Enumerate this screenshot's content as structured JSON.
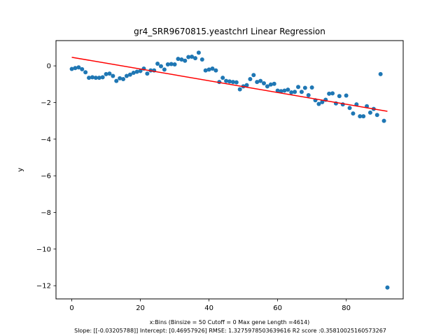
{
  "chart_data": {
    "type": "scatter",
    "title": "gr4_SRR9670815.yeastchrI Linear Regression",
    "xlabel": "x:Bins  (Binsize = 50 Cutoff = 0 Max gene Length =4614)",
    "ylabel": "y",
    "footer": "Slope: [[-0.03205788]] Intercept: [0.46957926] RMSE: 1.3275978503639616 R2 score :0.35810025160573267",
    "xlim": [
      -4.6,
      96.6
    ],
    "ylim": [
      -12.72,
      1.38
    ],
    "x_ticks": [
      0,
      20,
      40,
      60,
      80
    ],
    "y_ticks": [
      0,
      -2,
      -4,
      -6,
      -8,
      -10,
      -12
    ],
    "grid": false,
    "point_color": "#1f77b4",
    "line_color": "#ff0000",
    "series": [
      {
        "x": [
          0,
          1,
          2,
          3,
          4,
          5,
          6,
          7,
          8,
          9,
          10,
          11,
          12,
          13,
          14,
          15,
          16,
          17,
          18,
          19,
          20,
          21,
          22,
          23,
          24,
          25,
          26,
          27,
          28,
          29,
          30,
          31,
          32,
          33,
          34,
          35,
          36,
          37,
          38,
          39,
          40,
          41,
          42,
          43,
          44,
          45,
          46,
          47,
          48,
          49,
          50,
          51,
          52,
          53,
          54,
          55,
          56,
          57,
          58,
          59,
          60,
          61,
          62,
          63,
          64,
          65,
          66,
          67,
          68,
          69,
          70,
          71,
          72,
          73,
          74,
          75,
          76,
          77,
          78,
          79,
          80,
          81,
          82,
          83,
          84,
          85,
          86,
          87,
          88,
          89,
          90,
          91,
          92
        ],
        "y": [
          -0.17,
          -0.12,
          -0.08,
          -0.18,
          -0.35,
          -0.65,
          -0.62,
          -0.65,
          -0.65,
          -0.62,
          -0.45,
          -0.42,
          -0.55,
          -0.82,
          -0.68,
          -0.72,
          -0.55,
          -0.48,
          -0.38,
          -0.32,
          -0.28,
          -0.15,
          -0.42,
          -0.25,
          -0.25,
          0.12,
          -0.02,
          -0.2,
          0.08,
          0.1,
          0.08,
          0.38,
          0.35,
          0.28,
          0.48,
          0.5,
          0.42,
          0.72,
          0.35,
          -0.25,
          -0.2,
          -0.15,
          -0.25,
          -0.88,
          -0.65,
          -0.82,
          -0.85,
          -0.88,
          -0.9,
          -1.28,
          -1.12,
          -1.05,
          -0.72,
          -0.5,
          -0.88,
          -0.82,
          -0.95,
          -1.12,
          -1.02,
          -0.98,
          -1.35,
          -1.38,
          -1.35,
          -1.3,
          -1.45,
          -1.42,
          -1.15,
          -1.42,
          -1.2,
          -1.6,
          -1.18,
          -1.88,
          -2.08,
          -1.98,
          -1.85,
          -1.52,
          -1.5,
          -2.05,
          -1.65,
          -2.1,
          -1.62,
          -2.3,
          -2.6,
          -2.1,
          -2.75,
          -2.75,
          -2.2,
          -2.55,
          -2.35,
          -2.68,
          -0.45,
          -3.0,
          -12.1
        ]
      }
    ],
    "fit_line": {
      "x": [
        0,
        92
      ],
      "y": [
        0.4696,
        -2.4797
      ]
    }
  }
}
